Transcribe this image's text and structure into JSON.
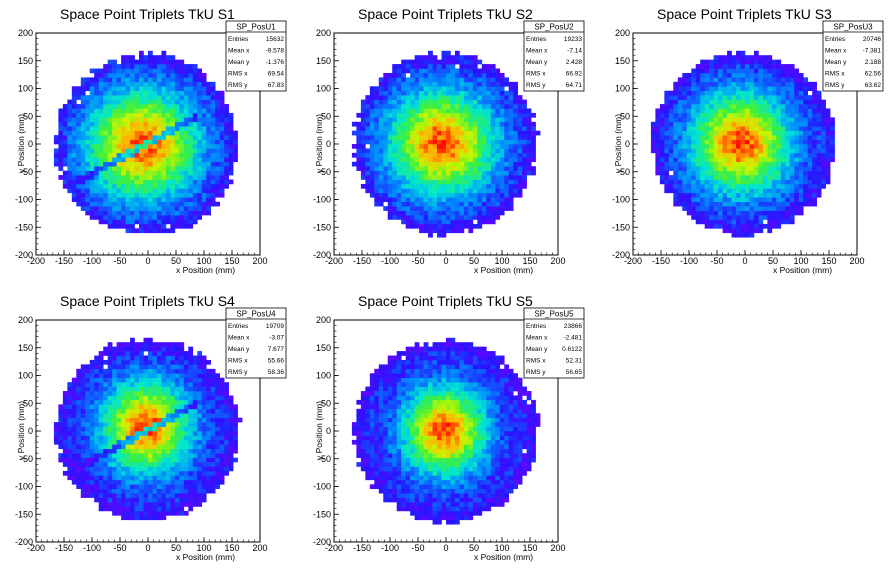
{
  "chart_data": [
    {
      "type": "heatmap",
      "title": "Space Point Triplets TkU S1",
      "xlabel": "x Position (mm)",
      "ylabel": "y Position (mm)",
      "xlim": [
        -200,
        200
      ],
      "ylim": [
        -200,
        200
      ],
      "xticks": [
        -200,
        -150,
        -100,
        -50,
        0,
        50,
        100,
        150,
        200
      ],
      "yticks": [
        -200,
        -150,
        -100,
        -50,
        0,
        50,
        100,
        150,
        200
      ],
      "colormap": "rainbow (blue-cyan-green-yellow-red)",
      "stats": {
        "name": "SP_PosU1",
        "rows": [
          [
            "Entries",
            "15632"
          ],
          [
            "Mean x",
            "-9.578"
          ],
          [
            "Mean y",
            "-1.376"
          ],
          [
            "RMS x",
            "69.54"
          ],
          [
            "RMS y",
            "67.83"
          ]
        ]
      },
      "model": {
        "mean_x": -9.578,
        "mean_y": -1.376,
        "rms_x": 69.54,
        "rms_y": 67.83,
        "radius": 160,
        "gap_band": true
      }
    },
    {
      "type": "heatmap",
      "title": "Space Point Triplets TkU S2",
      "xlabel": "x Position (mm)",
      "ylabel": "y Position (mm)",
      "xlim": [
        -200,
        200
      ],
      "ylim": [
        -200,
        200
      ],
      "xticks": [
        -200,
        -150,
        -100,
        -50,
        0,
        50,
        100,
        150,
        200
      ],
      "yticks": [
        -200,
        -150,
        -100,
        -50,
        0,
        50,
        100,
        150,
        200
      ],
      "colormap": "rainbow (blue-cyan-green-yellow-red)",
      "stats": {
        "name": "SP_PosU2",
        "rows": [
          [
            "Entries",
            "19233"
          ],
          [
            "Mean x",
            "-7.14"
          ],
          [
            "Mean y",
            "2.428"
          ],
          [
            "RMS x",
            "66.92"
          ],
          [
            "RMS y",
            "64.71"
          ]
        ]
      },
      "model": {
        "mean_x": -7.14,
        "mean_y": 2.428,
        "rms_x": 66.92,
        "rms_y": 64.71,
        "radius": 160,
        "gap_band": false
      }
    },
    {
      "type": "heatmap",
      "title": "Space Point Triplets TkU S3",
      "xlabel": "x Position (mm)",
      "ylabel": "y Position (mm)",
      "xlim": [
        -200,
        200
      ],
      "ylim": [
        -200,
        200
      ],
      "xticks": [
        -200,
        -150,
        -100,
        -50,
        0,
        50,
        100,
        150,
        200
      ],
      "yticks": [
        -200,
        -150,
        -100,
        -50,
        0,
        50,
        100,
        150,
        200
      ],
      "colormap": "rainbow (blue-cyan-green-yellow-red)",
      "stats": {
        "name": "SP_PosU3",
        "rows": [
          [
            "Entries",
            "20746"
          ],
          [
            "Mean x",
            "-7.381"
          ],
          [
            "Mean y",
            "2.188"
          ],
          [
            "RMS x",
            "62.56"
          ],
          [
            "RMS y",
            "63.62"
          ]
        ]
      },
      "model": {
        "mean_x": -7.381,
        "mean_y": 2.188,
        "rms_x": 62.56,
        "rms_y": 63.62,
        "radius": 160,
        "gap_band": false
      }
    },
    {
      "type": "heatmap",
      "title": "Space Point Triplets TkU S4",
      "xlabel": "x Position (mm)",
      "ylabel": "y Position (mm)",
      "xlim": [
        -200,
        200
      ],
      "ylim": [
        -200,
        200
      ],
      "xticks": [
        -200,
        -150,
        -100,
        -50,
        0,
        50,
        100,
        150,
        200
      ],
      "yticks": [
        -200,
        -150,
        -100,
        -50,
        0,
        50,
        100,
        150,
        200
      ],
      "colormap": "rainbow (blue-cyan-green-yellow-red)",
      "stats": {
        "name": "SP_PosU4",
        "rows": [
          [
            "Entries",
            "19709"
          ],
          [
            "Mean x",
            "-3.07"
          ],
          [
            "Mean y",
            "7.677"
          ],
          [
            "RMS x",
            "55.66"
          ],
          [
            "RMS y",
            "58.36"
          ]
        ]
      },
      "model": {
        "mean_x": -3.07,
        "mean_y": 7.677,
        "rms_x": 55.66,
        "rms_y": 58.36,
        "radius": 160,
        "gap_band": true
      }
    },
    {
      "type": "heatmap",
      "title": "Space Point Triplets TkU S5",
      "xlabel": "x Position (mm)",
      "ylabel": "y Position (mm)",
      "xlim": [
        -200,
        200
      ],
      "ylim": [
        -200,
        200
      ],
      "xticks": [
        -200,
        -150,
        -100,
        -50,
        0,
        50,
        100,
        150,
        200
      ],
      "yticks": [
        -200,
        -150,
        -100,
        -50,
        0,
        50,
        100,
        150,
        200
      ],
      "colormap": "rainbow (blue-cyan-green-yellow-red)",
      "stats": {
        "name": "SP_PosU5",
        "rows": [
          [
            "Entries",
            "23866"
          ],
          [
            "Mean x",
            "-2.481"
          ],
          [
            "Mean y",
            "0.6122"
          ],
          [
            "RMS x",
            "52.31"
          ],
          [
            "RMS y",
            "56.65"
          ]
        ]
      },
      "model": {
        "mean_x": -2.481,
        "mean_y": 0.6122,
        "rms_x": 52.31,
        "rms_y": 56.65,
        "radius": 160,
        "gap_band": false
      }
    }
  ]
}
